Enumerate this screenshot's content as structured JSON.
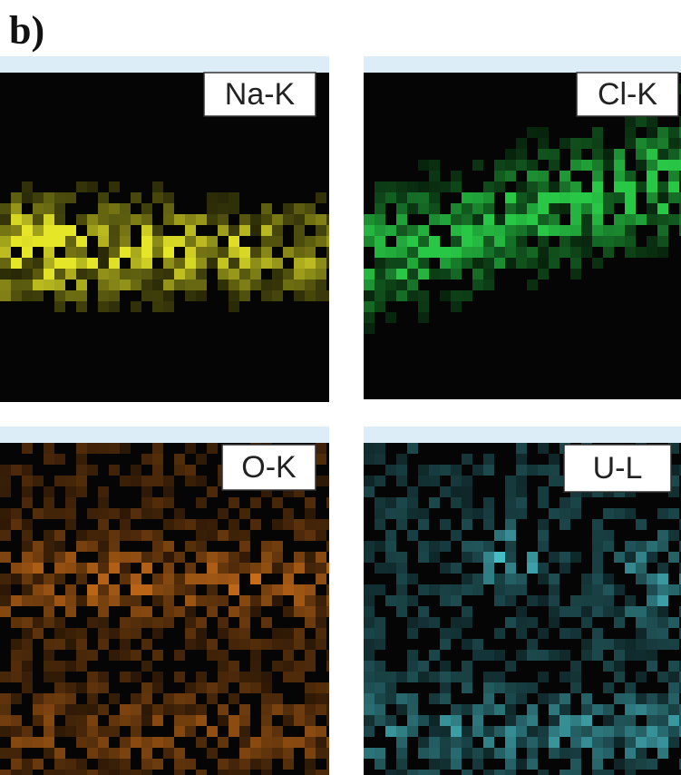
{
  "figure_label": "b)",
  "panels": [
    {
      "label": "Na-K",
      "color": "#e6e628"
    },
    {
      "label": "Cl-K",
      "color": "#28c846"
    },
    {
      "label": "O-K",
      "color": "#f0821e"
    },
    {
      "label": "U-L",
      "color": "#50d2dc"
    }
  ]
}
